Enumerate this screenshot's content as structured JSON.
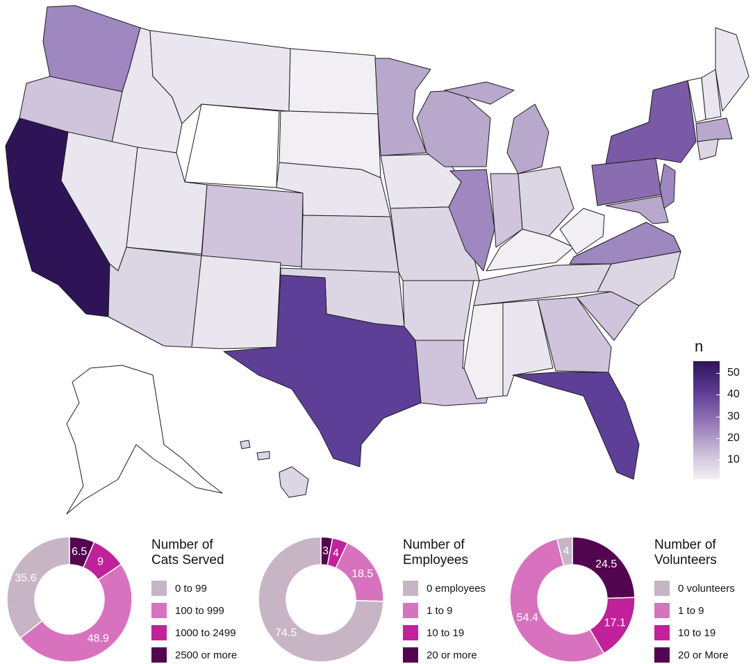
{
  "map": {
    "legend_title": "n",
    "legend_ticks": [
      "50",
      "40",
      "30",
      "20",
      "10"
    ],
    "colors": {
      "c55": "#2e1457",
      "c40": "#5e3f98",
      "c30": "#8a6cb0",
      "c25": "#9f88bf",
      "c20": "#b7a8cc",
      "c15": "#cfc4dc",
      "c10": "#dcd5e4",
      "c5": "#eae6ef",
      "c0": "#ffffff"
    }
  },
  "chart_data": [
    {
      "type": "pie",
      "title": "Number of Cats Served",
      "categories": [
        "0 to 99",
        "100 to 999",
        "1000 to 2499",
        "2500 or more"
      ],
      "values": [
        35.6,
        48.9,
        9,
        6.5
      ],
      "colors": [
        "#c7b5c6",
        "#d972be",
        "#c1219a",
        "#530550"
      ],
      "labels": [
        "35.6",
        "48.9",
        "9",
        "6.5"
      ]
    },
    {
      "type": "pie",
      "title": "Number of Employees",
      "categories": [
        "0 employees",
        "1 to 9",
        "10 to 19",
        "20 or more"
      ],
      "values": [
        74.5,
        18.5,
        4,
        3
      ],
      "colors": [
        "#c7b5c6",
        "#d972be",
        "#c1219a",
        "#530550"
      ],
      "labels": [
        "74.5",
        "18.5",
        "4",
        "3"
      ]
    },
    {
      "type": "pie",
      "title": "Number of Volunteers",
      "categories": [
        "0 volunteers",
        "1 to 9",
        "10 to 19",
        "20 or More"
      ],
      "values": [
        4,
        54.4,
        17.1,
        24.5
      ],
      "colors": [
        "#c7b5c6",
        "#d972be",
        "#c1219a",
        "#530550"
      ],
      "labels": [
        "4",
        "54.4",
        "17.1",
        "24.5"
      ]
    }
  ]
}
